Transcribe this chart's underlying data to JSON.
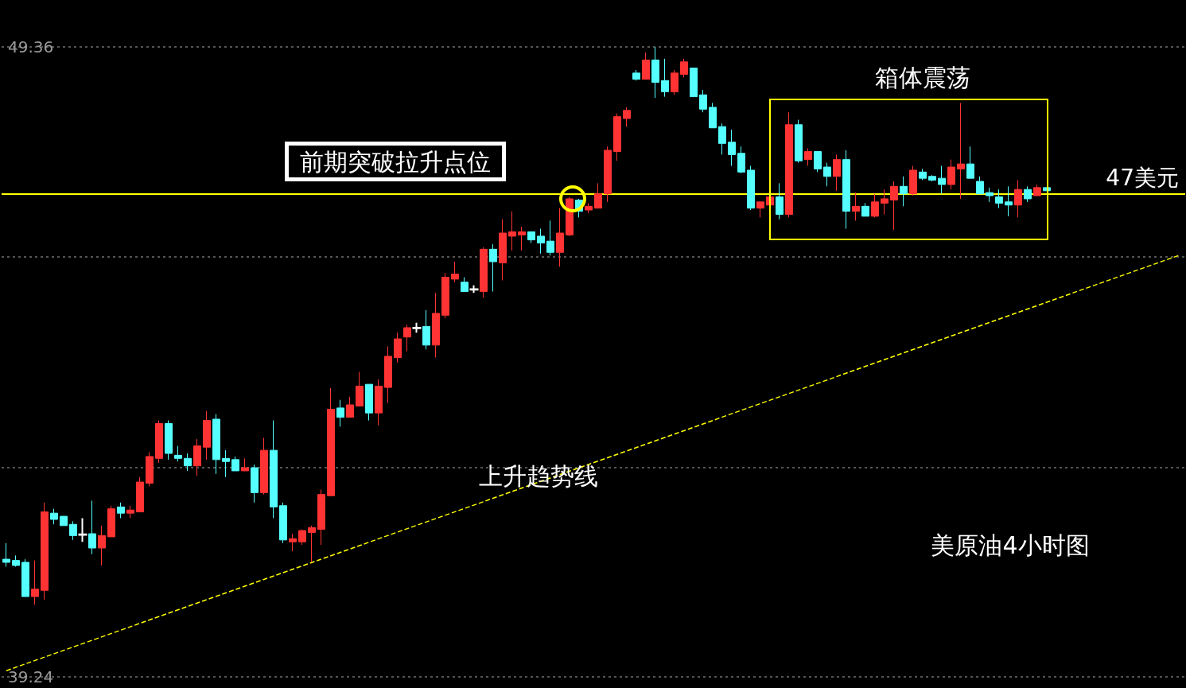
{
  "chart_data": {
    "type": "candlestick",
    "annotations": [
      "前期突破拉升点位",
      "箱体震荡",
      "上升趋势线",
      "美原油4小时图"
    ],
    "categories": [
      null,
      null,
      null,
      null,
      null,
      null,
      null,
      null,
      null,
      null,
      null,
      null,
      null,
      null,
      null,
      null,
      null,
      null,
      null,
      null,
      null,
      null,
      null,
      null,
      null,
      null,
      null,
      null,
      null,
      null,
      null,
      null,
      null,
      null,
      null,
      null,
      null,
      null,
      null,
      null,
      null,
      null,
      null,
      null,
      null,
      null,
      null,
      null,
      null,
      null,
      null,
      null,
      null,
      null,
      null,
      null,
      null,
      null,
      null,
      null,
      null,
      null,
      null,
      null,
      null,
      null,
      null,
      null,
      null,
      null,
      null,
      null,
      null,
      null,
      null,
      null,
      null,
      null,
      null,
      null,
      null,
      null,
      null,
      null,
      null,
      null,
      null,
      null,
      null,
      null,
      null,
      null,
      null,
      null,
      null,
      null,
      null,
      null,
      null,
      null,
      null,
      null,
      null,
      null,
      null,
      null,
      null,
      null,
      null,
      null,
      null,
      null,
      null,
      null,
      null,
      null,
      null,
      null,
      null,
      null,
      null,
      null,
      null,
      null
    ],
    "ohlc": [
      [
        41.13,
        41.39,
        41.01,
        41.08
      ],
      [
        41.11,
        41.19,
        41.01,
        41.03
      ],
      [
        41.08,
        41.13,
        40.53,
        40.53
      ],
      [
        40.53,
        41.11,
        40.4,
        40.65
      ],
      [
        40.63,
        42.04,
        40.48,
        41.89
      ],
      [
        41.87,
        41.94,
        41.69,
        41.77
      ],
      [
        41.82,
        41.82,
        41.67,
        41.67
      ],
      [
        41.69,
        41.74,
        41.44,
        41.51
      ],
      [
        41.53,
        41.79,
        41.41,
        41.52
      ],
      [
        41.54,
        42.07,
        41.21,
        41.31
      ],
      [
        41.31,
        41.67,
        41.03,
        41.51
      ],
      [
        41.49,
        41.99,
        41.49,
        41.94
      ],
      [
        41.97,
        42.04,
        41.79,
        41.87
      ],
      [
        41.87,
        41.99,
        41.79,
        41.92
      ],
      [
        41.89,
        42.45,
        41.89,
        42.37
      ],
      [
        42.35,
        42.85,
        42.3,
        42.78
      ],
      [
        42.75,
        43.36,
        42.68,
        43.31
      ],
      [
        43.31,
        43.36,
        42.73,
        42.83
      ],
      [
        42.8,
        42.95,
        42.7,
        42.75
      ],
      [
        42.75,
        42.83,
        42.55,
        42.63
      ],
      [
        42.63,
        43.06,
        42.47,
        42.95
      ],
      [
        42.93,
        43.51,
        42.73,
        43.36
      ],
      [
        43.38,
        43.46,
        42.5,
        42.73
      ],
      [
        42.75,
        42.88,
        42.45,
        42.7
      ],
      [
        42.73,
        42.78,
        42.55,
        42.55
      ],
      [
        42.55,
        42.75,
        42.55,
        42.6
      ],
      [
        42.6,
        42.65,
        42.04,
        42.2
      ],
      [
        42.2,
        43.08,
        42.17,
        42.88
      ],
      [
        42.88,
        43.36,
        41.79,
        41.97
      ],
      [
        41.99,
        42.04,
        41.39,
        41.44
      ],
      [
        41.41,
        41.54,
        41.26,
        41.46
      ],
      [
        41.41,
        41.61,
        41.36,
        41.59
      ],
      [
        41.56,
        41.67,
        41.08,
        41.64
      ],
      [
        41.61,
        42.25,
        41.36,
        42.17
      ],
      [
        42.15,
        43.88,
        42.15,
        43.54
      ],
      [
        43.56,
        43.69,
        43.26,
        43.41
      ],
      [
        43.41,
        43.74,
        43.41,
        43.61
      ],
      [
        43.59,
        44.14,
        43.59,
        43.91
      ],
      [
        43.94,
        43.94,
        43.36,
        43.48
      ],
      [
        43.48,
        44.02,
        43.28,
        43.91
      ],
      [
        43.89,
        44.55,
        43.64,
        44.39
      ],
      [
        44.37,
        44.77,
        44.29,
        44.67
      ],
      [
        44.7,
        44.9,
        44.47,
        44.85
      ],
      [
        44.85,
        44.93,
        44.77,
        44.84
      ],
      [
        44.87,
        45.13,
        44.5,
        44.57
      ],
      [
        44.57,
        45.41,
        44.37,
        45.08
      ],
      [
        45.05,
        45.73,
        45.0,
        45.66
      ],
      [
        45.63,
        45.91,
        45.58,
        45.71
      ],
      [
        45.58,
        45.66,
        45.43,
        45.43
      ],
      [
        45.47,
        45.53,
        45.41,
        45.46
      ],
      [
        45.43,
        46.14,
        45.33,
        46.11
      ],
      [
        46.11,
        46.19,
        45.43,
        45.91
      ],
      [
        45.89,
        46.59,
        45.61,
        46.37
      ],
      [
        46.32,
        46.72,
        46.09,
        46.39
      ],
      [
        46.34,
        46.47,
        46.09,
        46.39
      ],
      [
        46.39,
        46.39,
        46.21,
        46.26
      ],
      [
        46.32,
        46.44,
        46.04,
        46.21
      ],
      [
        46.24,
        46.57,
        46.01,
        46.06
      ],
      [
        46.06,
        46.77,
        45.83,
        46.37
      ],
      [
        46.34,
        46.95,
        46.32,
        46.92
      ],
      [
        46.9,
        46.92,
        46.62,
        46.72
      ],
      [
        46.74,
        46.85,
        46.69,
        46.8
      ],
      [
        46.77,
        47.17,
        46.77,
        47.0
      ],
      [
        47.0,
        47.76,
        46.87,
        47.7
      ],
      [
        47.68,
        48.29,
        47.53,
        48.24
      ],
      [
        48.21,
        48.39,
        48.08,
        48.34
      ],
      [
        48.94,
        48.99,
        48.82,
        48.84
      ],
      [
        48.84,
        49.27,
        48.84,
        49.15
      ],
      [
        49.15,
        49.36,
        48.54,
        48.79
      ],
      [
        48.82,
        49.17,
        48.56,
        48.64
      ],
      [
        48.64,
        48.99,
        48.59,
        48.94
      ],
      [
        48.92,
        49.17,
        48.87,
        49.12
      ],
      [
        49.02,
        49.02,
        48.56,
        48.56
      ],
      [
        48.59,
        48.67,
        48.31,
        48.36
      ],
      [
        48.39,
        48.46,
        48.06,
        48.06
      ],
      [
        48.08,
        48.13,
        47.63,
        47.81
      ],
      [
        47.83,
        48.03,
        47.45,
        47.63
      ],
      [
        47.65,
        47.76,
        47.33,
        47.35
      ],
      [
        47.38,
        47.45,
        46.74,
        46.77
      ],
      [
        46.77,
        46.87,
        46.62,
        46.87
      ],
      [
        46.82,
        46.95,
        46.82,
        46.95
      ],
      [
        46.95,
        47.17,
        46.59,
        46.67
      ],
      [
        46.67,
        48.31,
        46.62,
        48.11
      ],
      [
        48.11,
        48.19,
        47.5,
        47.53
      ],
      [
        47.55,
        47.73,
        47.45,
        47.68
      ],
      [
        47.68,
        47.68,
        47.35,
        47.4
      ],
      [
        47.43,
        47.5,
        47.12,
        47.28
      ],
      [
        47.28,
        47.63,
        47.05,
        47.55
      ],
      [
        47.55,
        47.7,
        46.44,
        46.72
      ],
      [
        46.72,
        47.02,
        46.57,
        46.8
      ],
      [
        46.8,
        46.85,
        46.64,
        46.64
      ],
      [
        46.64,
        47.0,
        46.62,
        46.87
      ],
      [
        46.85,
        47.07,
        46.67,
        46.92
      ],
      [
        46.9,
        47.2,
        46.42,
        47.12
      ],
      [
        47.12,
        47.28,
        46.8,
        47.0
      ],
      [
        47.0,
        47.45,
        46.97,
        47.38
      ],
      [
        47.35,
        47.4,
        47.22,
        47.25
      ],
      [
        47.28,
        47.3,
        47.2,
        47.22
      ],
      [
        47.25,
        47.45,
        47.0,
        47.15
      ],
      [
        47.15,
        47.55,
        47.07,
        47.43
      ],
      [
        47.4,
        48.46,
        46.92,
        47.48
      ],
      [
        47.48,
        47.76,
        47.25,
        47.25
      ],
      [
        47.2,
        47.28,
        47.0,
        47.0
      ],
      [
        47.02,
        47.1,
        46.87,
        46.97
      ],
      [
        46.95,
        47.07,
        46.77,
        46.85
      ],
      [
        46.87,
        47.12,
        46.64,
        46.82
      ],
      [
        46.82,
        47.22,
        46.62,
        47.07
      ],
      [
        47.07,
        47.12,
        46.87,
        46.92
      ],
      [
        46.97,
        47.15,
        46.97,
        47.1
      ],
      [
        47.1,
        47.1,
        47.05,
        47.05
      ],
      null,
      null,
      null,
      null,
      null,
      null,
      null,
      null,
      null,
      null,
      null,
      null,
      null,
      null
    ],
    "colors": [
      "#55ffff",
      "#55ffff",
      "#55ffff",
      "#ff3333",
      "#ff3333",
      "#55ffff",
      "#55ffff",
      "#55ffff",
      "#ffffff",
      "#55ffff",
      "#ff3333",
      "#ff3333",
      "#55ffff",
      "#ff3333",
      "#ff3333",
      "#ff3333",
      "#ff3333",
      "#55ffff",
      "#55ffff",
      "#55ffff",
      "#ff3333",
      "#ff3333",
      "#55ffff",
      "#55ffff",
      "#55ffff",
      "#ff3333",
      "#55ffff",
      "#ff3333",
      "#55ffff",
      "#55ffff",
      "#ff3333",
      "#ff3333",
      "#ff3333",
      "#ff3333",
      "#ff3333",
      "#55ffff",
      "#ff3333",
      "#ff3333",
      "#55ffff",
      "#ff3333",
      "#ff3333",
      "#ff3333",
      "#ff3333",
      "#ffffff",
      "#55ffff",
      "#ff3333",
      "#ff3333",
      "#ff3333",
      "#55ffff",
      "#ffffff",
      "#ff3333",
      "#55ffff",
      "#ff3333",
      "#ff3333",
      "#ff3333",
      "#55ffff",
      "#55ffff",
      "#55ffff",
      "#ff3333",
      "#ff3333",
      "#55ffff",
      "#ff3333",
      "#ff3333",
      "#ff3333",
      "#ff3333",
      "#ff3333",
      "#55ffff",
      "#ff3333",
      "#55ffff",
      "#55ffff",
      "#ff3333",
      "#ff3333",
      "#55ffff",
      "#55ffff",
      "#55ffff",
      "#55ffff",
      "#55ffff",
      "#55ffff",
      "#55ffff",
      "#ff3333",
      "#ff3333",
      "#55ffff",
      "#ff3333",
      "#55ffff",
      "#ff3333",
      "#55ffff",
      "#55ffff",
      "#ff3333",
      "#55ffff",
      "#ff3333",
      "#55ffff",
      "#ff3333",
      "#ff3333",
      "#ff3333",
      "#55ffff",
      "#ff3333",
      "#55ffff",
      "#55ffff",
      "#55ffff",
      "#ff3333",
      "#ff3333",
      "#55ffff",
      "#55ffff",
      "#55ffff",
      "#55ffff",
      "#55ffff",
      "#ff3333",
      "#55ffff",
      "#ff3333",
      "#55ffff",
      null,
      null,
      null,
      null,
      null,
      null,
      null,
      null,
      null,
      null,
      null,
      null,
      null,
      null
    ],
    "series": [
      {
        "type": "line",
        "color": "#ffff00",
        "values": [
          39.34,
          null,
          null,
          null,
          null,
          null,
          null,
          null,
          null,
          null,
          null,
          null,
          null,
          null,
          null,
          null,
          null,
          null,
          null,
          null,
          null,
          null,
          null,
          null,
          null,
          null,
          null,
          null,
          null,
          null,
          null,
          null,
          null,
          null,
          null,
          null,
          null,
          null,
          null,
          null,
          null,
          null,
          null,
          null,
          null,
          null,
          null,
          null,
          null,
          null,
          null,
          null,
          null,
          null,
          null,
          null,
          null,
          null,
          null,
          null,
          null,
          null,
          null,
          null,
          null,
          null,
          null,
          null,
          null,
          null,
          null,
          null,
          null,
          null,
          null,
          null,
          null,
          null,
          null,
          null,
          null,
          null,
          null,
          null,
          null,
          null,
          null,
          null,
          null,
          null,
          null,
          null,
          null,
          null,
          null,
          null,
          null,
          null,
          null,
          null,
          null,
          null,
          null,
          null,
          null,
          null,
          null,
          null,
          null,
          null,
          null,
          null,
          null,
          null,
          null,
          null,
          null,
          null,
          null,
          null,
          null,
          null,
          null,
          46.02
        ]
      }
    ],
    "line_style": "dashed",
    "ylim": [
      39.24,
      49.36
    ],
    "yticks": [
      39.24,
      {
        "value": 42.61,
        "label": null
      },
      {
        "value": 45.99,
        "label": null
      },
      49.36
    ],
    "grid": "y",
    "tick_labels": "y",
    "ref_lines": [
      {
        "axis": "y",
        "value": 47,
        "label": "47美元",
        "color": "#ffff00",
        "line_style": "solid"
      }
    ]
  }
}
